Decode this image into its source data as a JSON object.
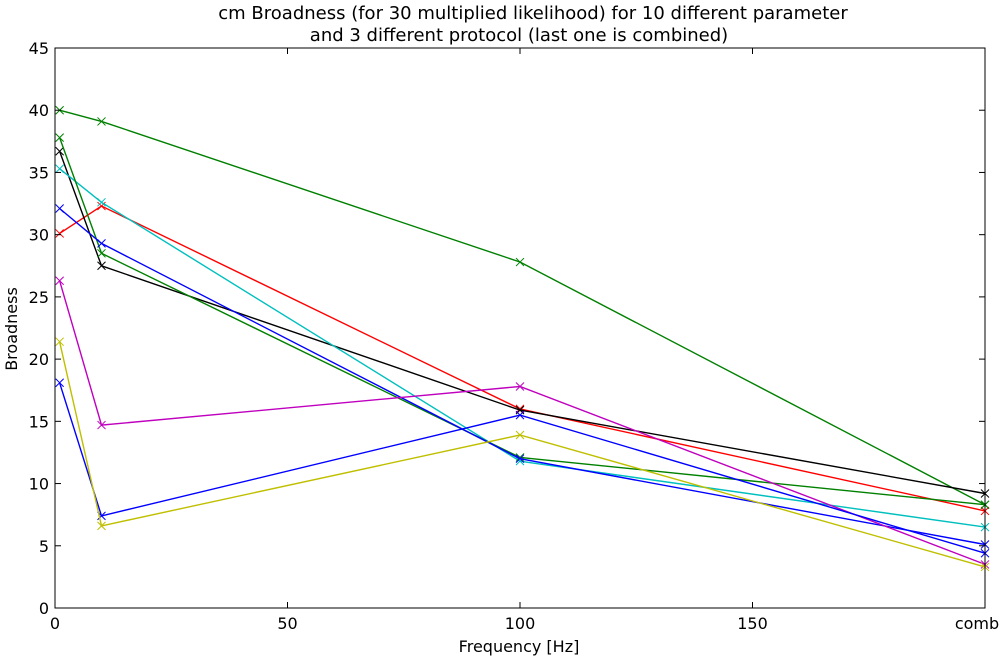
{
  "chart_data": {
    "type": "line",
    "title": "cm Broadness (for 30 multiplied likelihood) for 10 different parameter",
    "subtitle": "and 3 different protocol (last one is combined)",
    "xlabel": "Frequency [Hz]",
    "ylabel": "Broadness",
    "xlim": [
      0,
      200
    ],
    "ylim": [
      0,
      45
    ],
    "x_ticks": [
      0,
      50,
      100,
      150,
      200
    ],
    "x_tick_labels": [
      "0",
      "50",
      "100",
      "150",
      "comb"
    ],
    "y_ticks": [
      0,
      5,
      10,
      15,
      20,
      25,
      30,
      35,
      40,
      45
    ],
    "y_tick_labels": [
      "0",
      "5",
      "10",
      "15",
      "20",
      "25",
      "30",
      "35",
      "40",
      "45"
    ],
    "grid": false,
    "marker": "x",
    "x": [
      1,
      10,
      100,
      200
    ],
    "series": [
      {
        "color": "#008000",
        "values": [
          40.0,
          39.1,
          27.8,
          8.3
        ]
      },
      {
        "color": "#ff0000",
        "values": [
          30.1,
          32.3,
          16.0,
          7.8
        ]
      },
      {
        "color": "#000000",
        "values": [
          36.7,
          27.5,
          15.9,
          9.2
        ]
      },
      {
        "color": "#00bfbf",
        "values": [
          35.3,
          32.6,
          11.8,
          6.5
        ]
      },
      {
        "color": "#008000",
        "values": [
          37.8,
          28.5,
          12.1,
          8.3
        ]
      },
      {
        "color": "#0000ff",
        "values": [
          32.1,
          29.3,
          12.0,
          5.1
        ]
      },
      {
        "color": "#bf00bf",
        "values": [
          26.3,
          14.7,
          17.8,
          3.5
        ]
      },
      {
        "color": "#0000ff",
        "values": [
          18.1,
          7.4,
          15.5,
          4.4
        ]
      },
      {
        "color": "#bfbf00",
        "values": [
          21.4,
          6.6,
          13.9,
          3.3
        ]
      }
    ]
  }
}
